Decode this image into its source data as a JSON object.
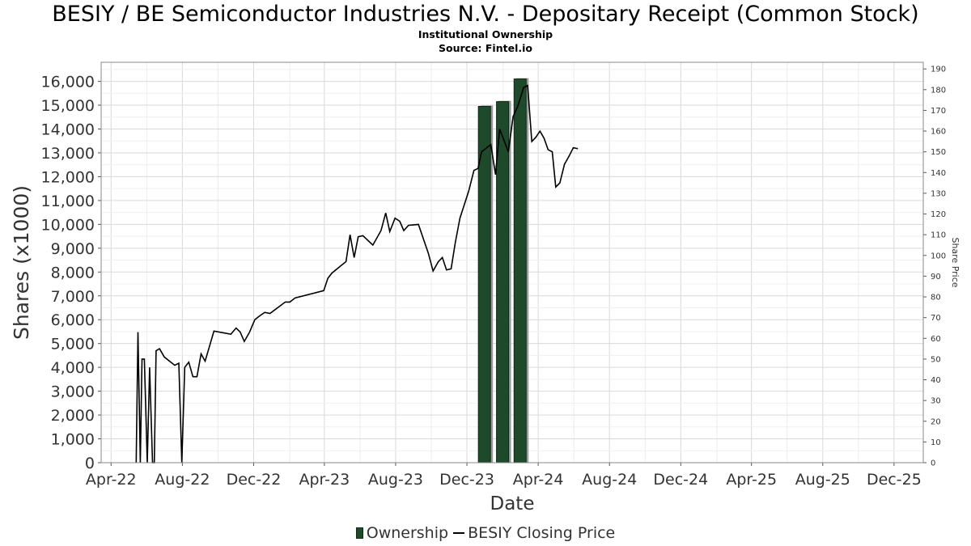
{
  "title": "BESIY / BE Semiconductor Industries N.V. - Depositary Receipt (Common Stock)",
  "subtitle1": "Institutional Ownership",
  "subtitle2": "Source: Fintel.io",
  "colors": {
    "bar": "#1e4a2b",
    "bar_shadow": "#9a9a9a",
    "line": "#000000",
    "grid": "#d9d9d9"
  },
  "chart_data": {
    "type": "bar",
    "title": "BESIY / BE Semiconductor Industries N.V. - Depositary Receipt (Common Stock)",
    "xlabel": "Date",
    "ylabel": "Shares (x1000)",
    "y2label": "Share Price",
    "xlim": [
      "2022-03-15",
      "2026-01-20"
    ],
    "ylim": [
      0,
      16800
    ],
    "y2lim": [
      0,
      193.2
    ],
    "grid": true,
    "legend_position": "bottom",
    "x_ticks": [
      {
        "label": "Apr-22",
        "date": "2022-04-01"
      },
      {
        "label": "Aug-22",
        "date": "2022-08-01"
      },
      {
        "label": "Dec-22",
        "date": "2022-12-01"
      },
      {
        "label": "Apr-23",
        "date": "2023-04-01"
      },
      {
        "label": "Aug-23",
        "date": "2023-08-01"
      },
      {
        "label": "Dec-23",
        "date": "2023-12-01"
      },
      {
        "label": "Apr-24",
        "date": "2024-04-01"
      },
      {
        "label": "Aug-24",
        "date": "2024-08-01"
      },
      {
        "label": "Dec-24",
        "date": "2024-12-01"
      },
      {
        "label": "Apr-25",
        "date": "2025-04-01"
      },
      {
        "label": "Aug-25",
        "date": "2025-08-01"
      },
      {
        "label": "Dec-25",
        "date": "2025-12-01"
      }
    ],
    "y_ticks": [
      {
        "label": "0",
        "value": 0
      },
      {
        "label": "1,000",
        "value": 1000
      },
      {
        "label": "2,000",
        "value": 2000
      },
      {
        "label": "3,000",
        "value": 3000
      },
      {
        "label": "4,000",
        "value": 4000
      },
      {
        "label": "5,000",
        "value": 5000
      },
      {
        "label": "6,000",
        "value": 6000
      },
      {
        "label": "7,000",
        "value": 7000
      },
      {
        "label": "8,000",
        "value": 8000
      },
      {
        "label": "9,000",
        "value": 9000
      },
      {
        "label": "10,000",
        "value": 10000
      },
      {
        "label": "11,000",
        "value": 11000
      },
      {
        "label": "12,000",
        "value": 12000
      },
      {
        "label": "13,000",
        "value": 13000
      },
      {
        "label": "14,000",
        "value": 14000
      },
      {
        "label": "15,000",
        "value": 15000
      },
      {
        "label": "16,000",
        "value": 16000
      }
    ],
    "y2_ticks": [
      {
        "label": "0",
        "value": 0
      },
      {
        "label": "10",
        "value": 10
      },
      {
        "label": "20",
        "value": 20
      },
      {
        "label": "30",
        "value": 30
      },
      {
        "label": "40",
        "value": 40
      },
      {
        "label": "50",
        "value": 50
      },
      {
        "label": "60",
        "value": 60
      },
      {
        "label": "70",
        "value": 70
      },
      {
        "label": "80",
        "value": 80
      },
      {
        "label": "90",
        "value": 90
      },
      {
        "label": "100",
        "value": 100
      },
      {
        "label": "110",
        "value": 110
      },
      {
        "label": "120",
        "value": 120
      },
      {
        "label": "130",
        "value": 130
      },
      {
        "label": "140",
        "value": 140
      },
      {
        "label": "150",
        "value": 150
      },
      {
        "label": "160",
        "value": 160
      },
      {
        "label": "170",
        "value": 170
      },
      {
        "label": "180",
        "value": 180
      },
      {
        "label": "190",
        "value": 190
      }
    ],
    "series": [
      {
        "name": "Ownership",
        "type": "bar",
        "axis": "left",
        "points": [
          {
            "x": "2023-12-31",
            "y": 14950
          },
          {
            "x": "2024-01-31",
            "y": 15150
          },
          {
            "x": "2024-03-01",
            "y": 16100
          }
        ]
      },
      {
        "name": "BESIY Closing Price",
        "type": "line",
        "axis": "right",
        "points": [
          {
            "x": "2022-05-14",
            "y": 0
          },
          {
            "x": "2022-05-17",
            "y": 63
          },
          {
            "x": "2022-05-21",
            "y": 0
          },
          {
            "x": "2022-05-24",
            "y": 50
          },
          {
            "x": "2022-05-28",
            "y": 50
          },
          {
            "x": "2022-06-02",
            "y": 0
          },
          {
            "x": "2022-06-06",
            "y": 46
          },
          {
            "x": "2022-06-11",
            "y": 0
          },
          {
            "x": "2022-06-14",
            "y": 0
          },
          {
            "x": "2022-06-17",
            "y": 54
          },
          {
            "x": "2022-06-23",
            "y": 55
          },
          {
            "x": "2022-07-01",
            "y": 51
          },
          {
            "x": "2022-07-10",
            "y": 49
          },
          {
            "x": "2022-07-19",
            "y": 47
          },
          {
            "x": "2022-07-26",
            "y": 48
          },
          {
            "x": "2022-07-31",
            "y": 0
          },
          {
            "x": "2022-08-05",
            "y": 46
          },
          {
            "x": "2022-08-12",
            "y": 48.5
          },
          {
            "x": "2022-08-19",
            "y": 41.5
          },
          {
            "x": "2022-08-26",
            "y": 41.5
          },
          {
            "x": "2022-09-02",
            "y": 52.5
          },
          {
            "x": "2022-09-09",
            "y": 49
          },
          {
            "x": "2022-09-24",
            "y": 63.5
          },
          {
            "x": "2022-10-23",
            "y": 62
          },
          {
            "x": "2022-11-01",
            "y": 65
          },
          {
            "x": "2022-11-08",
            "y": 63
          },
          {
            "x": "2022-11-15",
            "y": 58.5
          },
          {
            "x": "2022-11-24",
            "y": 63
          },
          {
            "x": "2022-12-03",
            "y": 69
          },
          {
            "x": "2022-12-12",
            "y": 71
          },
          {
            "x": "2022-12-20",
            "y": 72.5
          },
          {
            "x": "2022-12-29",
            "y": 72
          },
          {
            "x": "2023-01-24",
            "y": 77.5
          },
          {
            "x": "2023-02-01",
            "y": 77.5
          },
          {
            "x": "2023-02-10",
            "y": 79.5
          },
          {
            "x": "2023-03-31",
            "y": 83
          },
          {
            "x": "2023-04-07",
            "y": 89
          },
          {
            "x": "2023-04-14",
            "y": 91.5
          },
          {
            "x": "2023-04-29",
            "y": 95
          },
          {
            "x": "2023-05-08",
            "y": 97
          },
          {
            "x": "2023-05-15",
            "y": 110
          },
          {
            "x": "2023-05-22",
            "y": 99
          },
          {
            "x": "2023-05-29",
            "y": 109
          },
          {
            "x": "2023-06-06",
            "y": 109.5
          },
          {
            "x": "2023-06-23",
            "y": 105
          },
          {
            "x": "2023-07-07",
            "y": 112
          },
          {
            "x": "2023-07-15",
            "y": 120.5
          },
          {
            "x": "2023-07-22",
            "y": 111.5
          },
          {
            "x": "2023-07-31",
            "y": 118
          },
          {
            "x": "2023-08-08",
            "y": 116.5
          },
          {
            "x": "2023-08-15",
            "y": 112
          },
          {
            "x": "2023-08-23",
            "y": 114.5
          },
          {
            "x": "2023-09-09",
            "y": 115
          },
          {
            "x": "2023-09-26",
            "y": 101
          },
          {
            "x": "2023-10-04",
            "y": 92.5
          },
          {
            "x": "2023-10-13",
            "y": 97
          },
          {
            "x": "2023-10-20",
            "y": 99
          },
          {
            "x": "2023-10-27",
            "y": 93
          },
          {
            "x": "2023-11-04",
            "y": 93.5
          },
          {
            "x": "2023-11-11",
            "y": 106
          },
          {
            "x": "2023-11-19",
            "y": 118
          },
          {
            "x": "2023-12-04",
            "y": 131
          },
          {
            "x": "2023-12-13",
            "y": 141
          },
          {
            "x": "2023-12-20",
            "y": 142
          },
          {
            "x": "2023-12-26",
            "y": 150
          },
          {
            "x": "2024-01-11",
            "y": 153.5
          },
          {
            "x": "2024-01-19",
            "y": 139
          },
          {
            "x": "2024-01-26",
            "y": 161
          },
          {
            "x": "2024-02-10",
            "y": 150
          },
          {
            "x": "2024-02-18",
            "y": 167
          },
          {
            "x": "2024-02-26",
            "y": 172
          },
          {
            "x": "2024-03-07",
            "y": 181
          },
          {
            "x": "2024-03-14",
            "y": 182
          },
          {
            "x": "2024-03-21",
            "y": 155
          },
          {
            "x": "2024-03-28",
            "y": 157
          },
          {
            "x": "2024-04-04",
            "y": 160
          },
          {
            "x": "2024-04-11",
            "y": 156.5
          },
          {
            "x": "2024-04-18",
            "y": 151
          },
          {
            "x": "2024-04-25",
            "y": 150
          },
          {
            "x": "2024-05-01",
            "y": 133
          },
          {
            "x": "2024-05-08",
            "y": 135
          },
          {
            "x": "2024-05-16",
            "y": 144
          },
          {
            "x": "2024-05-24",
            "y": 148
          },
          {
            "x": "2024-05-31",
            "y": 152
          },
          {
            "x": "2024-06-08",
            "y": 151.5
          }
        ]
      }
    ]
  },
  "legend": [
    {
      "label": "Ownership"
    },
    {
      "label": "BESIY Closing Price"
    }
  ]
}
